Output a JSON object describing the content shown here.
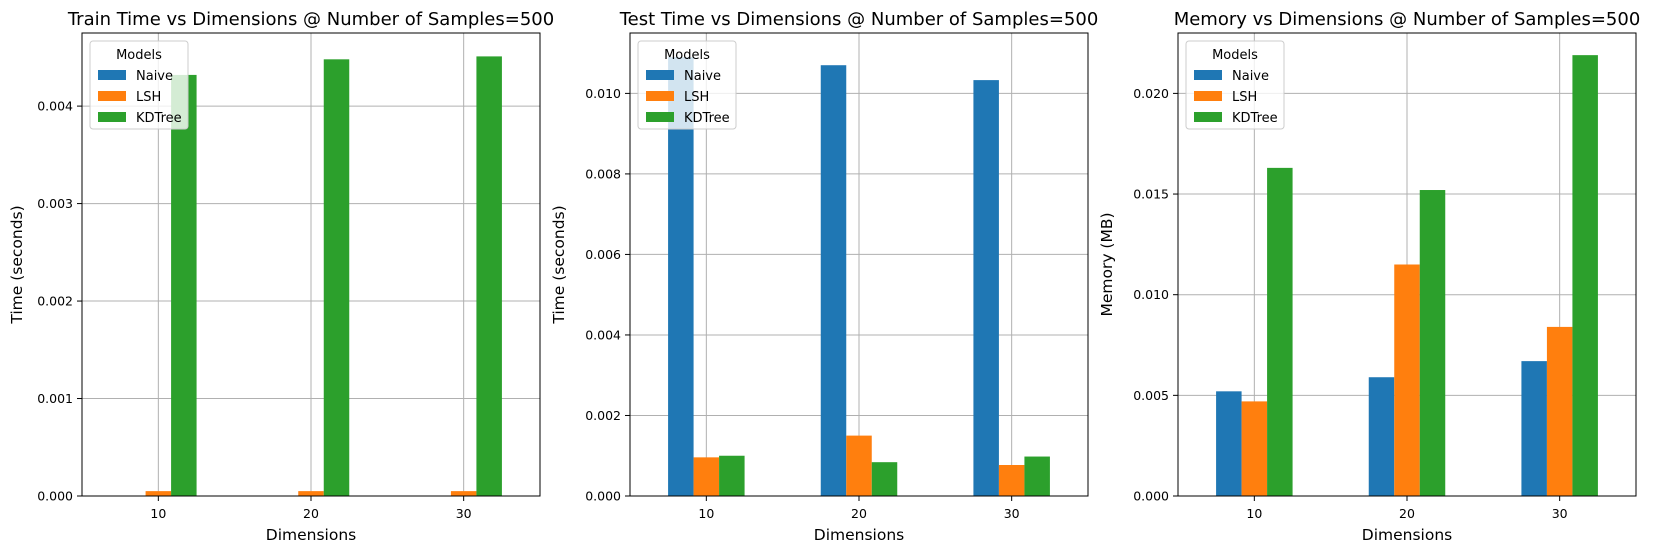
{
  "chart_data": [
    {
      "type": "bar",
      "title": "Train Time vs Dimensions @ Number of Samples=500",
      "xlabel": "Dimensions",
      "ylabel": "Time (seconds)",
      "categories": [
        "10",
        "20",
        "30"
      ],
      "ylim": [
        0,
        0.00475
      ],
      "yticks": [
        "0.000",
        "0.001",
        "0.002",
        "0.003",
        "0.004"
      ],
      "ytick_values": [
        0,
        0.001,
        0.002,
        0.003,
        0.004
      ],
      "grid": true,
      "legend_title": "Models",
      "legend_position": "top-left",
      "series": [
        {
          "name": "Naive",
          "color": "#1f77b4",
          "values": [
            4e-06,
            4e-06,
            4e-06
          ]
        },
        {
          "name": "LSH",
          "color": "#ff7f0e",
          "values": [
            5e-05,
            5e-05,
            5e-05
          ]
        },
        {
          "name": "KDTree",
          "color": "#2ca02c",
          "values": [
            0.00432,
            0.00448,
            0.00451
          ]
        }
      ]
    },
    {
      "type": "bar",
      "title": "Test Time vs Dimensions @ Number of Samples=500",
      "xlabel": "Dimensions",
      "ylabel": "Time (seconds)",
      "categories": [
        "10",
        "20",
        "30"
      ],
      "ylim": [
        0,
        0.0115
      ],
      "yticks": [
        "0.000",
        "0.002",
        "0.004",
        "0.006",
        "0.008",
        "0.010"
      ],
      "ytick_values": [
        0,
        0.002,
        0.004,
        0.006,
        0.008,
        0.01
      ],
      "grid": true,
      "legend_title": "Models",
      "legend_position": "top-left",
      "series": [
        {
          "name": "Naive",
          "color": "#1f77b4",
          "values": [
            0.0109,
            0.0107,
            0.01033
          ]
        },
        {
          "name": "LSH",
          "color": "#ff7f0e",
          "values": [
            0.00096,
            0.0015,
            0.00077
          ]
        },
        {
          "name": "KDTree",
          "color": "#2ca02c",
          "values": [
            0.001,
            0.00084,
            0.00098
          ]
        }
      ]
    },
    {
      "type": "bar",
      "title": "Memory vs Dimensions @ Number of Samples=500",
      "xlabel": "Dimensions",
      "ylabel": "Memory (MB)",
      "categories": [
        "10",
        "20",
        "30"
      ],
      "ylim": [
        0,
        0.023
      ],
      "yticks": [
        "0.000",
        "0.005",
        "0.010",
        "0.015",
        "0.020"
      ],
      "ytick_values": [
        0,
        0.005,
        0.01,
        0.015,
        0.02
      ],
      "grid": true,
      "legend_title": "Models",
      "legend_position": "top-left",
      "series": [
        {
          "name": "Naive",
          "color": "#1f77b4",
          "values": [
            0.0052,
            0.0059,
            0.0067
          ]
        },
        {
          "name": "LSH",
          "color": "#ff7f0e",
          "values": [
            0.0047,
            0.0115,
            0.0084
          ]
        },
        {
          "name": "KDTree",
          "color": "#2ca02c",
          "values": [
            0.0163,
            0.0152,
            0.0219
          ]
        }
      ]
    }
  ]
}
